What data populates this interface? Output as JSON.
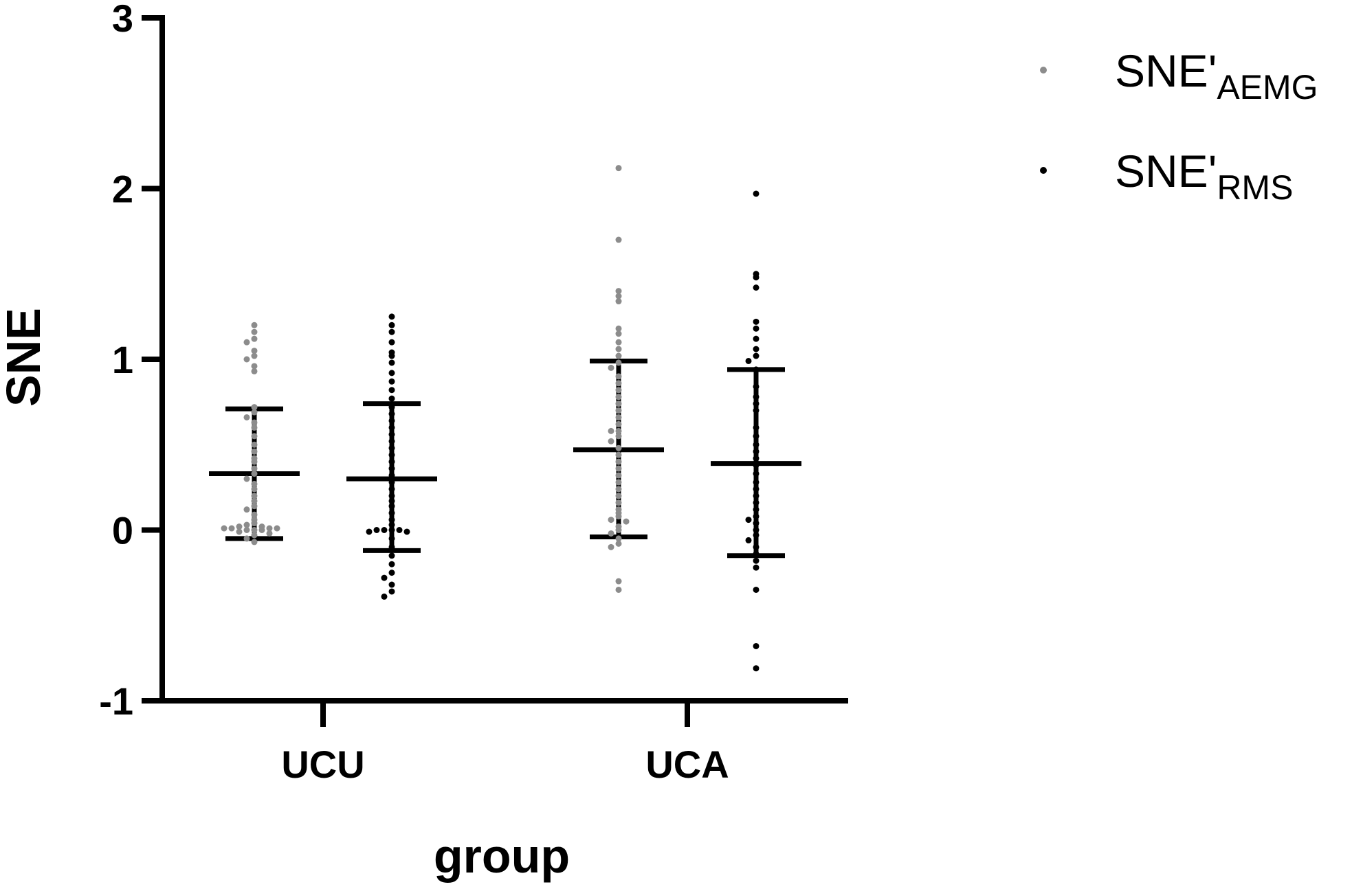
{
  "chart_data": {
    "type": "scatter",
    "title": "",
    "xlabel": "group",
    "ylabel": "SNE",
    "ylim": [
      -1,
      3
    ],
    "yticks": [
      "-1",
      "0",
      "1",
      "2",
      "3"
    ],
    "categories": [
      "UCU",
      "UCA"
    ],
    "grid": false,
    "legend_position": "top-right",
    "series": [
      {
        "name": "SNE'",
        "name_sub": "AEMG",
        "color": "#8c8c8c",
        "groups": [
          {
            "category": "UCU",
            "mean": 0.33,
            "sd_low": -0.05,
            "sd_high": 0.71,
            "points": [
              1.2,
              1.16,
              1.12,
              1.1,
              1.05,
              1.02,
              1.0,
              0.96,
              0.93,
              0.72,
              0.69,
              0.66,
              0.63,
              0.6,
              0.55,
              0.5,
              0.46,
              0.42,
              0.4,
              0.36,
              0.33,
              0.3,
              0.27,
              0.24,
              0.2,
              0.17,
              0.14,
              0.12,
              0.09,
              0.06,
              0.04,
              0.03,
              0.02,
              0.02,
              0.01,
              0.01,
              0.01,
              0.01,
              0.0,
              0.0,
              0.0,
              -0.01,
              -0.02,
              -0.03,
              -0.05,
              -0.07
            ]
          },
          {
            "category": "UCA",
            "mean": 0.47,
            "sd_low": -0.04,
            "sd_high": 0.99,
            "points": [
              2.12,
              1.7,
              1.4,
              1.37,
              1.34,
              1.18,
              1.15,
              1.1,
              1.06,
              1.02,
              0.98,
              0.95,
              0.9,
              0.86,
              0.82,
              0.78,
              0.74,
              0.7,
              0.66,
              0.62,
              0.58,
              0.58,
              0.55,
              0.52,
              0.48,
              0.44,
              0.4,
              0.36,
              0.32,
              0.28,
              0.24,
              0.2,
              0.16,
              0.12,
              0.1,
              0.08,
              0.06,
              0.05,
              0.02,
              0.0,
              -0.02,
              -0.05,
              -0.08,
              -0.1,
              -0.3,
              -0.35
            ]
          }
        ]
      },
      {
        "name": "SNE'",
        "name_sub": "RMS",
        "color": "#000000",
        "groups": [
          {
            "category": "UCU",
            "mean": 0.3,
            "sd_low": -0.12,
            "sd_high": 0.74,
            "points": [
              1.25,
              1.2,
              1.16,
              1.1,
              1.04,
              1.02,
              0.98,
              0.92,
              0.87,
              0.82,
              0.77,
              0.72,
              0.68,
              0.64,
              0.6,
              0.56,
              0.52,
              0.48,
              0.44,
              0.4,
              0.36,
              0.32,
              0.28,
              0.24,
              0.2,
              0.17,
              0.14,
              0.1,
              0.06,
              0.03,
              0.0,
              0.0,
              0.0,
              0.0,
              -0.01,
              -0.01,
              -0.05,
              -0.1,
              -0.15,
              -0.2,
              -0.25,
              -0.28,
              -0.32,
              -0.36,
              -0.39
            ]
          },
          {
            "category": "UCA",
            "mean": 0.39,
            "sd_low": -0.15,
            "sd_high": 0.94,
            "points": [
              1.97,
              1.5,
              1.48,
              1.42,
              1.22,
              1.18,
              1.12,
              1.06,
              1.02,
              0.99,
              0.94,
              0.84,
              0.78,
              0.74,
              0.7,
              0.6,
              0.55,
              0.5,
              0.46,
              0.42,
              0.38,
              0.33,
              0.28,
              0.24,
              0.2,
              0.16,
              0.12,
              0.08,
              0.06,
              0.04,
              0.0,
              -0.03,
              -0.06,
              -0.1,
              -0.14,
              -0.18,
              -0.22,
              -0.35,
              -0.68,
              -0.81
            ]
          }
        ]
      }
    ]
  }
}
